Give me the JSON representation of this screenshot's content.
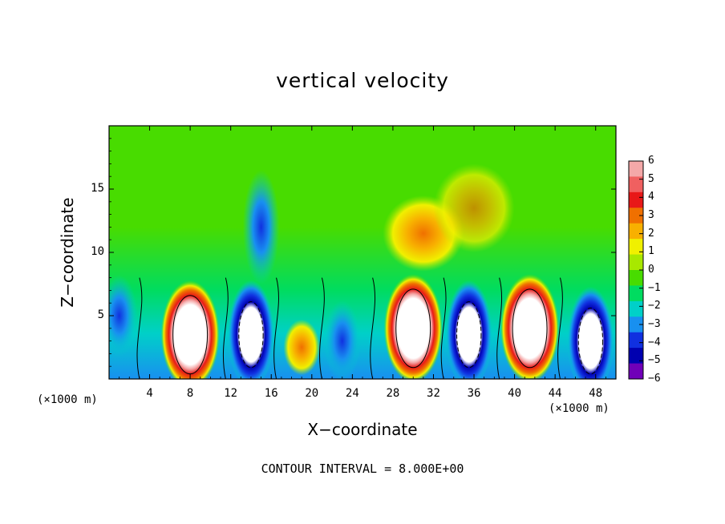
{
  "chart_data": {
    "type": "heatmap",
    "title": "vertical velocity",
    "xlabel": "X−coordinate",
    "ylabel": "Z−coordinate",
    "x_unit_label": "(×1000 m)",
    "footer": "CONTOUR INTERVAL = 8.000E+00",
    "xlim": [
      0,
      50
    ],
    "ylim": [
      0,
      20
    ],
    "xticks": [
      "4",
      "8",
      "12",
      "16",
      "20",
      "24",
      "28",
      "32",
      "36",
      "40",
      "44",
      "48"
    ],
    "yticks": [
      "5",
      "10",
      "15"
    ],
    "colorbar": {
      "ticks": [
        "6",
        "5",
        "4",
        "3",
        "2",
        "1",
        "0",
        "−1",
        "−2",
        "−3",
        "−4",
        "−5",
        "−6"
      ],
      "range": [
        -6,
        6
      ],
      "colors": [
        "#f4a8a8",
        "#f06060",
        "#e81818",
        "#f07000",
        "#f8b000",
        "#f0f000",
        "#a8e800",
        "#48dc00",
        "#00dc60",
        "#00d0c8",
        "#1890f0",
        "#1030e0",
        "#0000b0",
        "#7000b8"
      ]
    },
    "updrafts": [
      {
        "x": 8,
        "z": 3.5,
        "w": 10
      },
      {
        "x": 19,
        "z": 2.5,
        "w": 4
      },
      {
        "x": 30,
        "z": 4,
        "w": 10
      },
      {
        "x": 41.5,
        "z": 4,
        "w": 10
      }
    ],
    "downdrafts": [
      {
        "x": 1,
        "z": 5,
        "w": -5
      },
      {
        "x": 14,
        "z": 3.5,
        "w": -9
      },
      {
        "x": 23,
        "z": 3,
        "w": -5
      },
      {
        "x": 35.5,
        "z": 3.5,
        "w": -9
      },
      {
        "x": 47.5,
        "z": 3,
        "w": -7
      },
      {
        "x": 15,
        "z": 12,
        "w": -3
      }
    ]
  }
}
